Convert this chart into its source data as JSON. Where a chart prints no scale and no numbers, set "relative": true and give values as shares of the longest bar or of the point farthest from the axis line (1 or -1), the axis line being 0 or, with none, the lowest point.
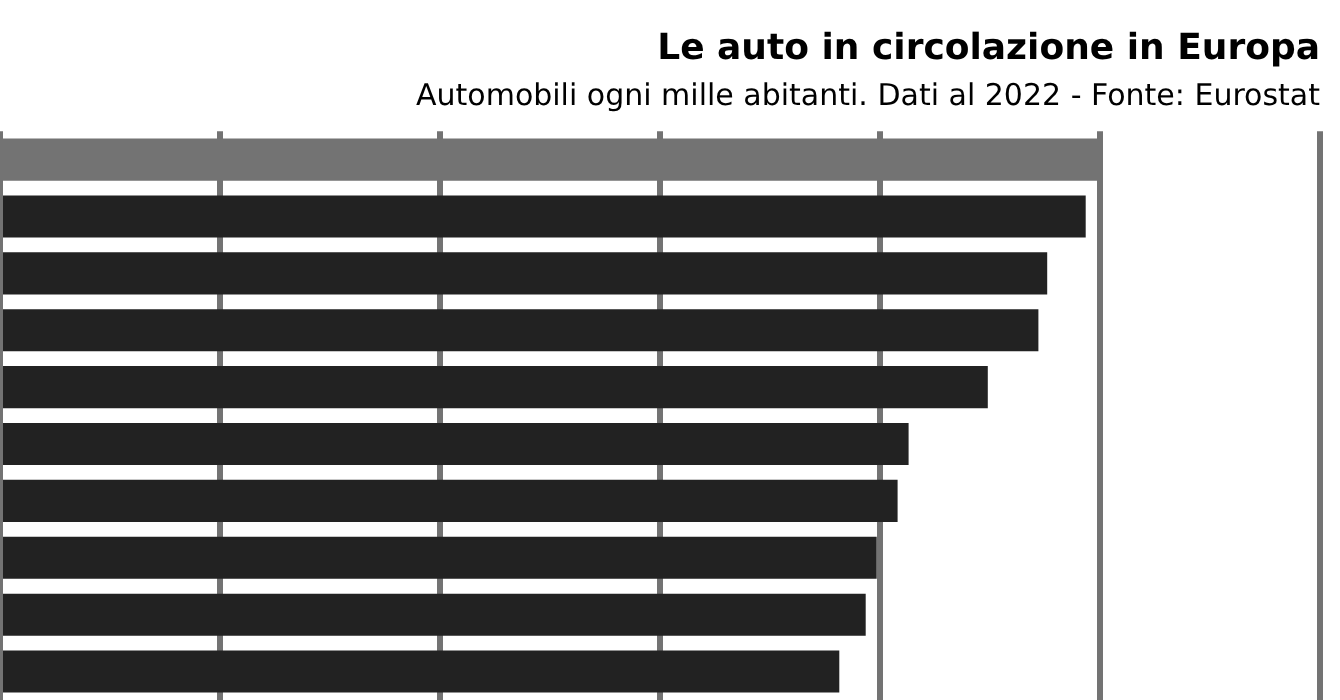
{
  "chart_data": {
    "type": "bar",
    "orientation": "horizontal",
    "relative": true,
    "title": "Le auto in circolazione in Europa",
    "subtitle": "Automobili ogni mille abitanti. Dati al 2022 - Fonte: Eurostat",
    "categories": [
      null,
      null,
      null,
      null,
      null,
      null,
      null,
      null,
      null,
      null
    ],
    "values": [
      1,
      0.987,
      0.952,
      0.944,
      0.898,
      0.826,
      0.816,
      0.797,
      0.787,
      0.763
    ],
    "colors": [
      "#737373",
      "#222222",
      "#222222",
      "#222222",
      "#222222",
      "#222222",
      "#222222",
      "#222222",
      "#222222",
      "#222222"
    ],
    "grid": "x",
    "legend": false
  }
}
